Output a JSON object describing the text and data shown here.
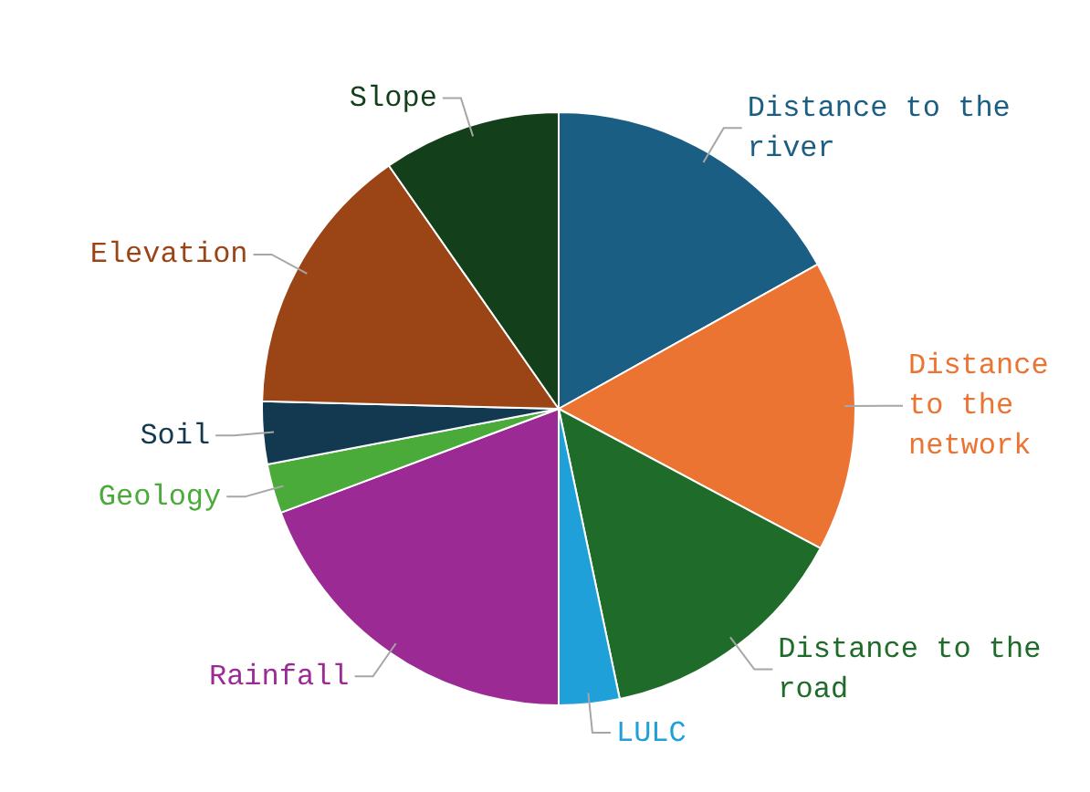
{
  "chart_data": {
    "type": "pie",
    "categories": [
      "Distance to the river",
      "Distance to the network",
      "Distance to the road",
      "LULC",
      "Rainfall",
      "Geology",
      "Soil",
      "Elevation",
      "Slope"
    ],
    "values": [
      16.9,
      15.9,
      13.9,
      3.3,
      19.3,
      2.7,
      3.4,
      14.9,
      9.7
    ],
    "colors": [
      "#1b5e84",
      "#ec7433",
      "#1e6b2a",
      "#1fa0d8",
      "#9c2a94",
      "#4aaa3a",
      "#12394f",
      "#9b4516",
      "#143f1b"
    ],
    "legend": false
  }
}
